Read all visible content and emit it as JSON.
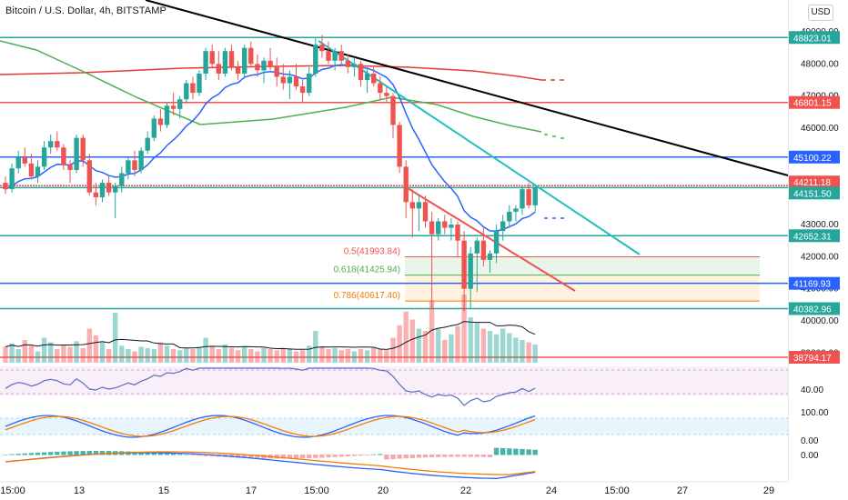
{
  "header": {
    "title": "Bitcoin / U.S. Dollar, 4h, BITSTAMP",
    "currency_button": "USD"
  },
  "colors": {
    "green": "#26a69a",
    "red": "#ef5350",
    "blue": "#2962ff",
    "black": "#000000",
    "cyan": "#22bdc4",
    "sma_red": "#e53935",
    "sma_green": "#4caf50",
    "orange": "#f57c00"
  },
  "price_axis": {
    "ticks": [
      "49000.00",
      "48000.00",
      "47000.00",
      "46000.00",
      "45000.00",
      "43000.00",
      "42000.00",
      "41000.00",
      "40000.00",
      "39000.00"
    ],
    "level_labels": [
      {
        "text": "48823.01",
        "color": "#26a69a"
      },
      {
        "text": "46801.15",
        "color": "#ef5350"
      },
      {
        "text": "45100.22",
        "color": "#2962ff"
      },
      {
        "text": "44211.18",
        "color": "#ef5350"
      },
      {
        "text": "44151.50",
        "color": "#26a69a"
      },
      {
        "text": "42652.31",
        "color": "#26a69a"
      },
      {
        "text": "41169.93",
        "color": "#2962ff"
      },
      {
        "text": "40382.96",
        "color": "#26a69a"
      },
      {
        "text": "38794.17",
        "color": "#ef5350"
      }
    ]
  },
  "fib_labels": [
    {
      "text": "0.5(41993.84)",
      "color": "#ef5350"
    },
    {
      "text": "0.618(41425.94)",
      "color": "#4caf50"
    },
    {
      "text": "0.786(40617.40)",
      "color": "#f57c00"
    }
  ],
  "indicators": {
    "rsi_label": "40.00",
    "stoch_labels": [
      "100.00",
      "0.00"
    ],
    "macd_label": "0.00"
  },
  "time_axis": {
    "labels": [
      "15:00",
      "13",
      "15",
      "17",
      "15:00",
      "20",
      "22",
      "24",
      "15:00",
      "27",
      "29"
    ]
  },
  "chart_data": {
    "type": "candlestick",
    "ohlc": [
      [
        44300,
        44500,
        43950,
        44100
      ],
      [
        44100,
        44900,
        44000,
        44750
      ],
      [
        44750,
        45300,
        44600,
        45100
      ],
      [
        45100,
        45400,
        44800,
        44900
      ],
      [
        44900,
        45200,
        44400,
        44500
      ],
      [
        44500,
        45000,
        44300,
        44800
      ],
      [
        44800,
        45600,
        44700,
        45400
      ],
      [
        45400,
        45800,
        45200,
        45600
      ],
      [
        45600,
        45900,
        45300,
        45400
      ],
      [
        45400,
        45500,
        44700,
        44850
      ],
      [
        44850,
        45000,
        44300,
        44700
      ],
      [
        44700,
        45800,
        44600,
        45700
      ],
      [
        45700,
        45800,
        44800,
        45000
      ],
      [
        45000,
        45200,
        43900,
        44000
      ],
      [
        44000,
        44300,
        43600,
        43850
      ],
      [
        43850,
        44400,
        43700,
        44300
      ],
      [
        44300,
        44500,
        43900,
        44000
      ],
      [
        44000,
        44300,
        43200,
        44200
      ],
      [
        44200,
        44800,
        44000,
        44600
      ],
      [
        44600,
        45100,
        44400,
        45000
      ],
      [
        45000,
        45300,
        44500,
        44700
      ],
      [
        44700,
        45400,
        44600,
        45300
      ],
      [
        45300,
        45900,
        45200,
        45700
      ],
      [
        45700,
        46400,
        45600,
        46300
      ],
      [
        46300,
        46600,
        45900,
        46100
      ],
      [
        46100,
        46800,
        46000,
        46700
      ],
      [
        46700,
        47100,
        46400,
        46600
      ],
      [
        46600,
        47000,
        46300,
        46900
      ],
      [
        46900,
        47500,
        46800,
        47400
      ],
      [
        47400,
        47600,
        46900,
        47100
      ],
      [
        47100,
        47800,
        47000,
        47700
      ],
      [
        47700,
        48500,
        47500,
        48400
      ],
      [
        48400,
        48600,
        47900,
        48000
      ],
      [
        48000,
        48400,
        47500,
        47700
      ],
      [
        47700,
        48500,
        47600,
        48400
      ],
      [
        48400,
        48600,
        47800,
        47900
      ],
      [
        47900,
        48100,
        47500,
        47700
      ],
      [
        47700,
        48600,
        47600,
        48500
      ],
      [
        48500,
        48700,
        47900,
        48000
      ],
      [
        48000,
        48300,
        47600,
        47800
      ],
      [
        47800,
        48200,
        47400,
        48100
      ],
      [
        48100,
        48500,
        47800,
        47900
      ],
      [
        47900,
        48200,
        47300,
        47600
      ],
      [
        47600,
        48000,
        47200,
        47400
      ],
      [
        47400,
        47800,
        46900,
        47600
      ],
      [
        47600,
        48000,
        47200,
        47300
      ],
      [
        47300,
        47500,
        46800,
        47100
      ],
      [
        47100,
        47900,
        47000,
        47700
      ],
      [
        47700,
        48800,
        47600,
        48600
      ],
      [
        48600,
        48900,
        48200,
        48400
      ],
      [
        48400,
        48700,
        48000,
        48100
      ],
      [
        48100,
        48500,
        47800,
        48400
      ],
      [
        48400,
        48600,
        48000,
        48100
      ],
      [
        48100,
        48300,
        47700,
        47900
      ],
      [
        47900,
        48200,
        47600,
        48000
      ],
      [
        48000,
        48100,
        47300,
        47500
      ],
      [
        47500,
        47900,
        47100,
        47700
      ],
      [
        47700,
        47900,
        47300,
        47400
      ],
      [
        47400,
        47600,
        46900,
        47100
      ],
      [
        47100,
        47300,
        46800,
        47000
      ],
      [
        47000,
        47100,
        45700,
        46100
      ],
      [
        46100,
        46200,
        44600,
        44800
      ],
      [
        44800,
        45000,
        43200,
        43700
      ],
      [
        43700,
        44100,
        42600,
        43500
      ],
      [
        43500,
        43900,
        42800,
        43700
      ],
      [
        43700,
        43900,
        42900,
        43100
      ],
      [
        43100,
        43400,
        40400,
        42700
      ],
      [
        42700,
        43200,
        42500,
        43100
      ],
      [
        43100,
        43300,
        42700,
        42900
      ],
      [
        42900,
        43200,
        42500,
        43000
      ],
      [
        43000,
        43100,
        42000,
        42500
      ],
      [
        42500,
        42800,
        40300,
        41000
      ],
      [
        41000,
        42300,
        40400,
        42100
      ],
      [
        42100,
        42600,
        40900,
        42500
      ],
      [
        42500,
        42900,
        41700,
        41900
      ],
      [
        41900,
        42200,
        41500,
        42100
      ],
      [
        42100,
        43000,
        41800,
        42800
      ],
      [
        42800,
        43300,
        42500,
        43100
      ],
      [
        43100,
        43600,
        42900,
        43400
      ],
      [
        43400,
        43600,
        43100,
        43500
      ],
      [
        43500,
        44200,
        43300,
        44100
      ],
      [
        44100,
        44300,
        43500,
        43600
      ],
      [
        43600,
        44200,
        43400,
        44150
      ]
    ],
    "volumes": [
      14,
      17,
      12,
      20,
      15,
      10,
      22,
      18,
      12,
      16,
      14,
      19,
      13,
      30,
      24,
      18,
      12,
      44,
      15,
      12,
      10,
      14,
      13,
      12,
      18,
      15,
      12,
      11,
      13,
      12,
      14,
      22,
      15,
      12,
      16,
      13,
      11,
      14,
      12,
      10,
      13,
      12,
      11,
      13,
      12,
      10,
      11,
      15,
      28,
      14,
      12,
      13,
      11,
      12,
      10,
      12,
      11,
      13,
      12,
      11,
      22,
      33,
      45,
      38,
      30,
      28,
      55,
      30,
      20,
      25,
      32,
      60,
      40,
      35,
      30,
      28,
      25,
      30,
      26,
      22,
      20,
      18,
      16
    ],
    "ma_sma_red": [
      47550,
      47600,
      47620,
      47630,
      47620,
      47600,
      47560,
      47520,
      47500
    ],
    "ma_sma_green": [
      48600,
      48200,
      47600,
      47000,
      46600,
      46400,
      46500,
      46700,
      46800,
      46700,
      46500,
      46300,
      46050
    ],
    "levels": [
      48823.01,
      46801.15,
      45100.22,
      44211.18,
      44151.5,
      42652.31,
      41169.93,
      40382.96,
      38794.17
    ],
    "fibonacci": [
      {
        "ratio": 0.5,
        "price": 41993.84
      },
      {
        "ratio": 0.618,
        "price": 41425.94
      },
      {
        "ratio": 0.786,
        "price": 40617.4
      }
    ]
  }
}
